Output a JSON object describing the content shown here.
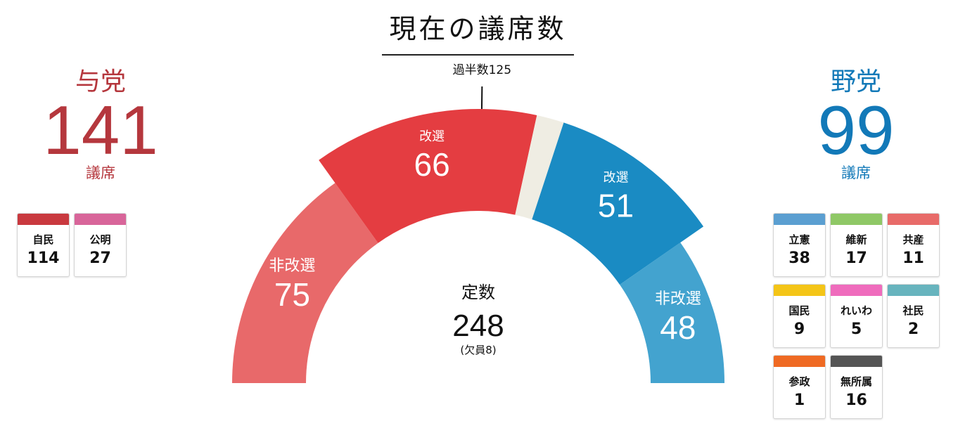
{
  "title": "現在の議席数",
  "majority_label": "過半数125",
  "total": {
    "label": "定数",
    "value": "248",
    "note": "(欠員8)"
  },
  "ruling": {
    "label": "与党",
    "seats": "141",
    "unit": "議席"
  },
  "opposition": {
    "label": "野党",
    "seats": "99",
    "unit": "議席"
  },
  "parties_ruling": [
    {
      "name": "自民",
      "seats": "114",
      "color": "#c9393f"
    },
    {
      "name": "公明",
      "seats": "27",
      "color": "#d8659a"
    }
  ],
  "parties_opposition": [
    {
      "name": "立憲",
      "seats": "38",
      "color": "#5b9fd1"
    },
    {
      "name": "維新",
      "seats": "17",
      "color": "#8fc866"
    },
    {
      "name": "共産",
      "seats": "11",
      "color": "#e86b69"
    },
    {
      "name": "国民",
      "seats": "9",
      "color": "#f4c517"
    },
    {
      "name": "れいわ",
      "seats": "5",
      "color": "#ef6cbd"
    },
    {
      "name": "社民",
      "seats": "2",
      "color": "#67b4be"
    },
    {
      "name": "参政",
      "seats": "1",
      "color": "#ef6a23"
    },
    {
      "name": "無所属",
      "seats": "16",
      "color": "#555555"
    }
  ],
  "chart_data": {
    "type": "semi-donut",
    "title": "現在の議席数",
    "total_seats": 248,
    "vacancies": 8,
    "majority": 125,
    "segments": [
      {
        "group": "与党",
        "label": "非改選",
        "value": 75,
        "color": "#e8696a",
        "ring": "inner"
      },
      {
        "group": "与党",
        "label": "改選",
        "value": 66,
        "color": "#e43d41",
        "ring": "outer"
      },
      {
        "group": "欠員",
        "label": "",
        "value": 8,
        "color": "#efede3",
        "ring": "outer"
      },
      {
        "group": "野党",
        "label": "改選",
        "value": 51,
        "color": "#1a8bc3",
        "ring": "outer"
      },
      {
        "group": "野党",
        "label": "非改選",
        "value": 48,
        "color": "#43a3cf",
        "ring": "inner"
      }
    ]
  }
}
